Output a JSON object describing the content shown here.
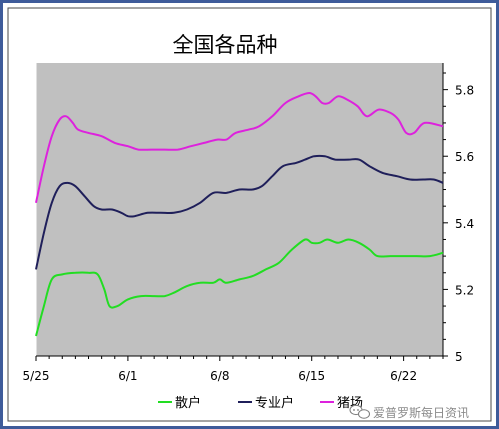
{
  "chart_data": {
    "type": "line",
    "title": "全国各品种",
    "x_ticks": [
      "5/25",
      "6/1",
      "6/8",
      "6/15",
      "6/22"
    ],
    "y_ticks": [
      "5",
      "5.2",
      "5.4",
      "5.6",
      "5.8"
    ],
    "ylim": [
      5,
      5.88
    ],
    "xlim": [
      0,
      31
    ],
    "grid": false,
    "legend_position": "bottom",
    "background_color": "#c0c0c0",
    "frame_color": "#3e5b9a",
    "series": [
      {
        "name": "散户",
        "color": "#22dd22",
        "points": [
          [
            0,
            5.06
          ],
          [
            0.6,
            5.15
          ],
          [
            1.2,
            5.23
          ],
          [
            2,
            5.245
          ],
          [
            3,
            5.25
          ],
          [
            4,
            5.25
          ],
          [
            4.7,
            5.245
          ],
          [
            5.2,
            5.2
          ],
          [
            5.6,
            5.15
          ],
          [
            6.2,
            5.15
          ],
          [
            7,
            5.17
          ],
          [
            8,
            5.18
          ],
          [
            9,
            5.18
          ],
          [
            9.8,
            5.18
          ],
          [
            10.5,
            5.19
          ],
          [
            11.5,
            5.21
          ],
          [
            12.5,
            5.22
          ],
          [
            13.5,
            5.22
          ],
          [
            14,
            5.23
          ],
          [
            14.5,
            5.22
          ],
          [
            15.5,
            5.23
          ],
          [
            16.5,
            5.24
          ],
          [
            17.5,
            5.26
          ],
          [
            18.5,
            5.28
          ],
          [
            19.5,
            5.32
          ],
          [
            20.5,
            5.35
          ],
          [
            21,
            5.34
          ],
          [
            21.6,
            5.34
          ],
          [
            22.2,
            5.35
          ],
          [
            23,
            5.34
          ],
          [
            23.8,
            5.35
          ],
          [
            24.6,
            5.34
          ],
          [
            25.4,
            5.32
          ],
          [
            26,
            5.3
          ],
          [
            27,
            5.3
          ],
          [
            28,
            5.3
          ],
          [
            29,
            5.3
          ],
          [
            30,
            5.3
          ],
          [
            31,
            5.31
          ]
        ]
      },
      {
        "name": "专业户",
        "color": "#1f1f5a",
        "points": [
          [
            0,
            5.26
          ],
          [
            0.6,
            5.37
          ],
          [
            1.2,
            5.46
          ],
          [
            1.8,
            5.51
          ],
          [
            2.4,
            5.52
          ],
          [
            3,
            5.51
          ],
          [
            3.7,
            5.48
          ],
          [
            4.4,
            5.45
          ],
          [
            5,
            5.44
          ],
          [
            5.8,
            5.44
          ],
          [
            6.5,
            5.43
          ],
          [
            7,
            5.42
          ],
          [
            7.5,
            5.42
          ],
          [
            8.5,
            5.43
          ],
          [
            9.5,
            5.43
          ],
          [
            10.5,
            5.43
          ],
          [
            11.5,
            5.44
          ],
          [
            12.5,
            5.46
          ],
          [
            13.5,
            5.49
          ],
          [
            14.5,
            5.49
          ],
          [
            15.5,
            5.5
          ],
          [
            16.5,
            5.5
          ],
          [
            17.2,
            5.51
          ],
          [
            18,
            5.54
          ],
          [
            18.8,
            5.57
          ],
          [
            19.8,
            5.58
          ],
          [
            20.5,
            5.59
          ],
          [
            21.2,
            5.6
          ],
          [
            22,
            5.6
          ],
          [
            22.8,
            5.59
          ],
          [
            23.8,
            5.59
          ],
          [
            24.6,
            5.59
          ],
          [
            25.4,
            5.57
          ],
          [
            26.4,
            5.55
          ],
          [
            27.5,
            5.54
          ],
          [
            28.5,
            5.53
          ],
          [
            29.5,
            5.53
          ],
          [
            30.3,
            5.53
          ],
          [
            31,
            5.52
          ]
        ]
      },
      {
        "name": "猪场",
        "color": "#dd22dd",
        "points": [
          [
            0,
            5.46
          ],
          [
            0.6,
            5.57
          ],
          [
            1.2,
            5.66
          ],
          [
            1.8,
            5.71
          ],
          [
            2.3,
            5.72
          ],
          [
            2.8,
            5.7
          ],
          [
            3.2,
            5.68
          ],
          [
            4,
            5.67
          ],
          [
            5,
            5.66
          ],
          [
            6,
            5.64
          ],
          [
            7,
            5.63
          ],
          [
            7.8,
            5.62
          ],
          [
            8.8,
            5.62
          ],
          [
            9.8,
            5.62
          ],
          [
            10.8,
            5.62
          ],
          [
            11.8,
            5.63
          ],
          [
            12.8,
            5.64
          ],
          [
            13.8,
            5.65
          ],
          [
            14.5,
            5.65
          ],
          [
            15.2,
            5.67
          ],
          [
            16.2,
            5.68
          ],
          [
            17,
            5.69
          ],
          [
            18,
            5.72
          ],
          [
            19,
            5.76
          ],
          [
            20,
            5.78
          ],
          [
            20.8,
            5.79
          ],
          [
            21.3,
            5.78
          ],
          [
            21.8,
            5.76
          ],
          [
            22.3,
            5.76
          ],
          [
            23,
            5.78
          ],
          [
            23.7,
            5.77
          ],
          [
            24.5,
            5.75
          ],
          [
            25.2,
            5.72
          ],
          [
            26.1,
            5.74
          ],
          [
            27,
            5.73
          ],
          [
            27.6,
            5.71
          ],
          [
            28.2,
            5.67
          ],
          [
            28.8,
            5.67
          ],
          [
            29.6,
            5.7
          ],
          [
            31,
            5.69
          ]
        ]
      }
    ]
  },
  "watermark": {
    "text": "爱普罗斯每日资讯",
    "icon": "chat-bubbles-icon"
  }
}
